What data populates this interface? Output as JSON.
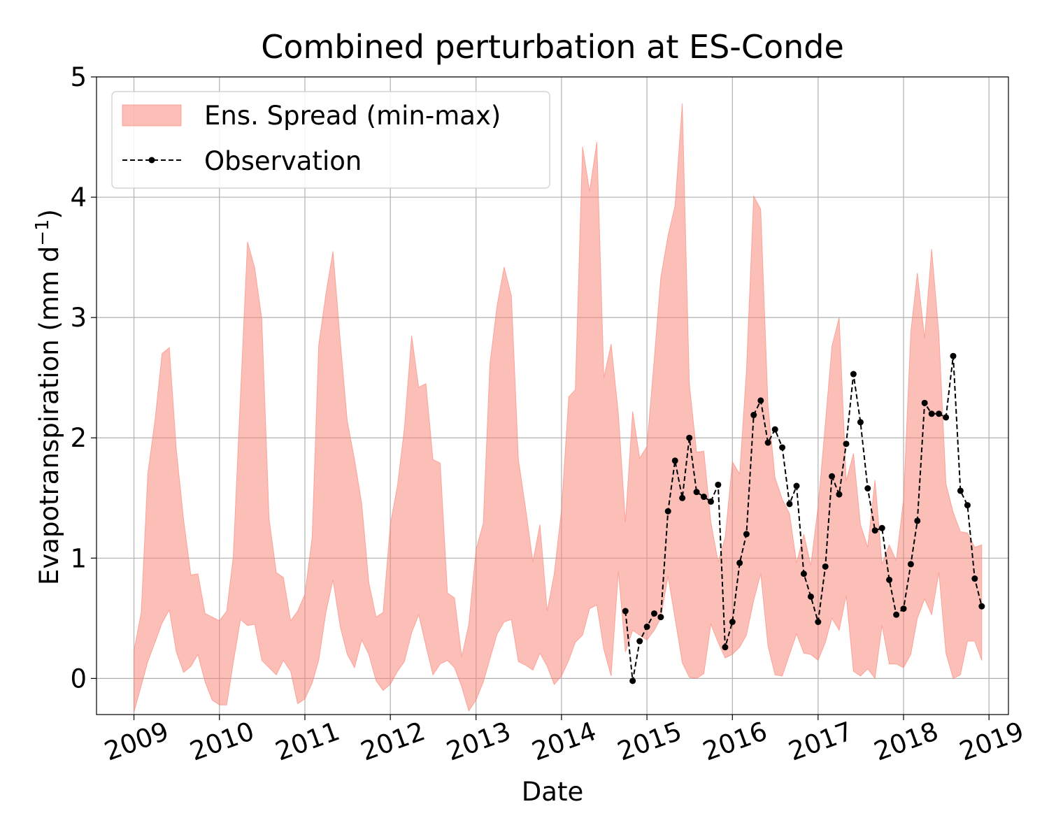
{
  "chart_data": {
    "type": "area",
    "title": "Combined perturbation at ES-Conde",
    "xlabel": "Date",
    "ylabel": "Evapotranspiration  (mm d",
    "ylabel_superscript": "−1",
    "ylabel_suffix": ")",
    "xlim": [
      "2008-07-25",
      "2019-03-25"
    ],
    "ylim": [
      -0.3,
      5
    ],
    "x_ticks": [
      "2009",
      "2010",
      "2011",
      "2012",
      "2013",
      "2014",
      "2015",
      "2016",
      "2017",
      "2018",
      "2019"
    ],
    "y_ticks": [
      0,
      1,
      2,
      3,
      4,
      5
    ],
    "y_tick_labels": [
      "0",
      "1",
      "2",
      "3",
      "4",
      "5"
    ],
    "grid": true,
    "legend_position": "top-left",
    "colors": {
      "spread": "#fa8072",
      "observation": "#000000",
      "grid": "#b0b0b0"
    },
    "legend": [
      {
        "label": "Ens. Spread (min-max)",
        "icon": "filled-rectangle"
      },
      {
        "label": "Observation",
        "icon": "dashed-line-with-dot"
      }
    ],
    "series": [
      {
        "name": "Ens. Spread (min-max)",
        "kind": "band",
        "x": [
          "2009-01",
          "2009-02",
          "2009-03",
          "2009-04",
          "2009-05",
          "2009-06",
          "2009-07",
          "2009-08",
          "2009-09",
          "2009-10",
          "2009-11",
          "2009-12",
          "2010-01",
          "2010-02",
          "2010-03",
          "2010-04",
          "2010-05",
          "2010-06",
          "2010-07",
          "2010-08",
          "2010-09",
          "2010-10",
          "2010-11",
          "2010-12",
          "2011-01",
          "2011-02",
          "2011-03",
          "2011-04",
          "2011-05",
          "2011-06",
          "2011-07",
          "2011-08",
          "2011-09",
          "2011-10",
          "2011-11",
          "2011-12",
          "2012-01",
          "2012-02",
          "2012-03",
          "2012-04",
          "2012-05",
          "2012-06",
          "2012-07",
          "2012-08",
          "2012-09",
          "2012-10",
          "2012-11",
          "2012-12",
          "2013-01",
          "2013-02",
          "2013-03",
          "2013-04",
          "2013-05",
          "2013-06",
          "2013-07",
          "2013-08",
          "2013-09",
          "2013-10",
          "2013-11",
          "2013-12",
          "2014-01",
          "2014-02",
          "2014-03",
          "2014-04",
          "2014-05",
          "2014-06",
          "2014-07",
          "2014-08",
          "2014-09",
          "2014-10",
          "2014-11",
          "2014-12",
          "2015-01",
          "2015-02",
          "2015-03",
          "2015-04",
          "2015-05",
          "2015-06",
          "2015-07",
          "2015-08",
          "2015-09",
          "2015-10",
          "2015-11",
          "2015-12",
          "2016-01",
          "2016-02",
          "2016-03",
          "2016-04",
          "2016-05",
          "2016-06",
          "2016-07",
          "2016-08",
          "2016-09",
          "2016-10",
          "2016-11",
          "2016-12",
          "2017-01",
          "2017-02",
          "2017-03",
          "2017-04",
          "2017-05",
          "2017-06",
          "2017-07",
          "2017-08",
          "2017-09",
          "2017-10",
          "2017-11",
          "2017-12",
          "2018-01",
          "2018-02",
          "2018-03",
          "2018-04",
          "2018-05",
          "2018-06",
          "2018-07",
          "2018-08",
          "2018-09",
          "2018-10",
          "2018-11",
          "2018-12"
        ],
        "min": [
          -0.28,
          -0.06,
          0.14,
          0.3,
          0.46,
          0.57,
          0.22,
          0.05,
          0.1,
          0.2,
          -0.03,
          -0.18,
          -0.22,
          -0.22,
          0.13,
          0.49,
          0.44,
          0.45,
          0.15,
          0.09,
          0.03,
          0.15,
          0.06,
          -0.21,
          -0.17,
          -0.04,
          0.15,
          0.55,
          0.82,
          0.43,
          0.2,
          0.09,
          0.32,
          0.2,
          -0.02,
          -0.1,
          -0.05,
          0.06,
          0.14,
          0.38,
          0.53,
          0.27,
          0.03,
          0.12,
          0.15,
          0.09,
          -0.07,
          -0.27,
          -0.18,
          -0.03,
          0.16,
          0.37,
          0.47,
          0.49,
          0.14,
          0.11,
          0.07,
          0.21,
          0.1,
          -0.05,
          0.02,
          0.15,
          0.3,
          0.36,
          0.58,
          0.61,
          0.24,
          0.02,
          0.89,
          0.22,
          0.4,
          0.36,
          0.32,
          0.4,
          0.5,
          0.85,
          0.5,
          0.13,
          0.01,
          0.0,
          0.04,
          0.45,
          0.3,
          0.17,
          0.2,
          0.26,
          0.36,
          0.65,
          0.87,
          0.27,
          0.03,
          0.02,
          0.2,
          0.37,
          0.21,
          0.2,
          0.15,
          0.3,
          0.5,
          0.4,
          0.69,
          0.06,
          0.02,
          0.08,
          0.0,
          0.44,
          0.12,
          0.12,
          0.09,
          0.2,
          0.5,
          0.66,
          0.53,
          0.88,
          0.21,
          0.0,
          0.03,
          0.31,
          0.31,
          0.15
        ],
        "max": [
          0.23,
          0.55,
          1.7,
          2.15,
          2.7,
          2.75,
          1.9,
          1.32,
          0.86,
          0.87,
          0.54,
          0.51,
          0.48,
          0.56,
          1.01,
          2.36,
          3.63,
          3.41,
          2.99,
          1.33,
          0.88,
          0.84,
          0.48,
          0.56,
          0.7,
          1.17,
          2.77,
          3.2,
          3.55,
          2.81,
          2.14,
          1.82,
          1.45,
          0.8,
          0.51,
          0.55,
          1.28,
          1.61,
          2.08,
          2.85,
          2.42,
          2.45,
          1.82,
          1.79,
          0.71,
          0.67,
          0.18,
          0.45,
          1.07,
          1.29,
          2.61,
          3.1,
          3.42,
          3.18,
          1.82,
          1.41,
          0.97,
          1.28,
          0.56,
          0.87,
          1.4,
          2.34,
          2.4,
          4.42,
          4.05,
          4.46,
          2.5,
          2.78,
          2.2,
          1.3,
          2.22,
          1.83,
          1.93,
          2.65,
          3.33,
          3.68,
          3.93,
          4.78,
          2.45,
          1.88,
          1.89,
          1.3,
          0.97,
          1.17,
          1.8,
          1.7,
          2.56,
          4.01,
          3.9,
          2.27,
          1.67,
          1.49,
          1.37,
          0.96,
          1.2,
          0.94,
          1.43,
          2.12,
          2.76,
          3.0,
          1.64,
          1.87,
          1.28,
          1.09,
          1.65,
          0.95,
          1.11,
          0.98,
          1.49,
          2.88,
          3.37,
          2.83,
          3.57,
          2.86,
          1.62,
          1.38,
          1.22,
          1.21,
          1.09,
          1.11
        ]
      },
      {
        "name": "Observation",
        "kind": "line",
        "x": [
          "2014-10",
          "2014-11",
          "2014-12",
          "2015-01",
          "2015-02",
          "2015-03",
          "2015-04",
          "2015-05",
          "2015-06",
          "2015-07",
          "2015-08",
          "2015-09",
          "2015-10",
          "2015-11",
          "2015-12",
          "2016-01",
          "2016-02",
          "2016-03",
          "2016-04",
          "2016-05",
          "2016-06",
          "2016-07",
          "2016-08",
          "2016-09",
          "2016-10",
          "2016-11",
          "2016-12",
          "2017-01",
          "2017-02",
          "2017-03",
          "2017-04",
          "2017-05",
          "2017-06",
          "2017-07",
          "2017-08",
          "2017-09",
          "2017-10",
          "2017-11",
          "2017-12",
          "2018-01",
          "2018-02",
          "2018-03",
          "2018-04",
          "2018-05",
          "2018-06",
          "2018-07",
          "2018-08",
          "2018-09",
          "2018-10",
          "2018-11",
          "2018-12"
        ],
        "y": [
          0.56,
          -0.02,
          0.31,
          0.43,
          0.54,
          0.51,
          1.39,
          1.81,
          1.5,
          2.0,
          1.55,
          1.51,
          1.47,
          1.61,
          0.26,
          0.47,
          0.96,
          1.2,
          2.19,
          2.31,
          1.96,
          2.07,
          1.92,
          1.45,
          1.6,
          0.87,
          0.68,
          0.47,
          0.93,
          1.68,
          1.53,
          1.95,
          2.53,
          2.13,
          1.58,
          1.23,
          1.25,
          0.82,
          0.53,
          0.58,
          0.95,
          1.31,
          2.29,
          2.2,
          2.2,
          2.17,
          2.68,
          1.56,
          1.44,
          0.83,
          0.6
        ]
      }
    ]
  }
}
